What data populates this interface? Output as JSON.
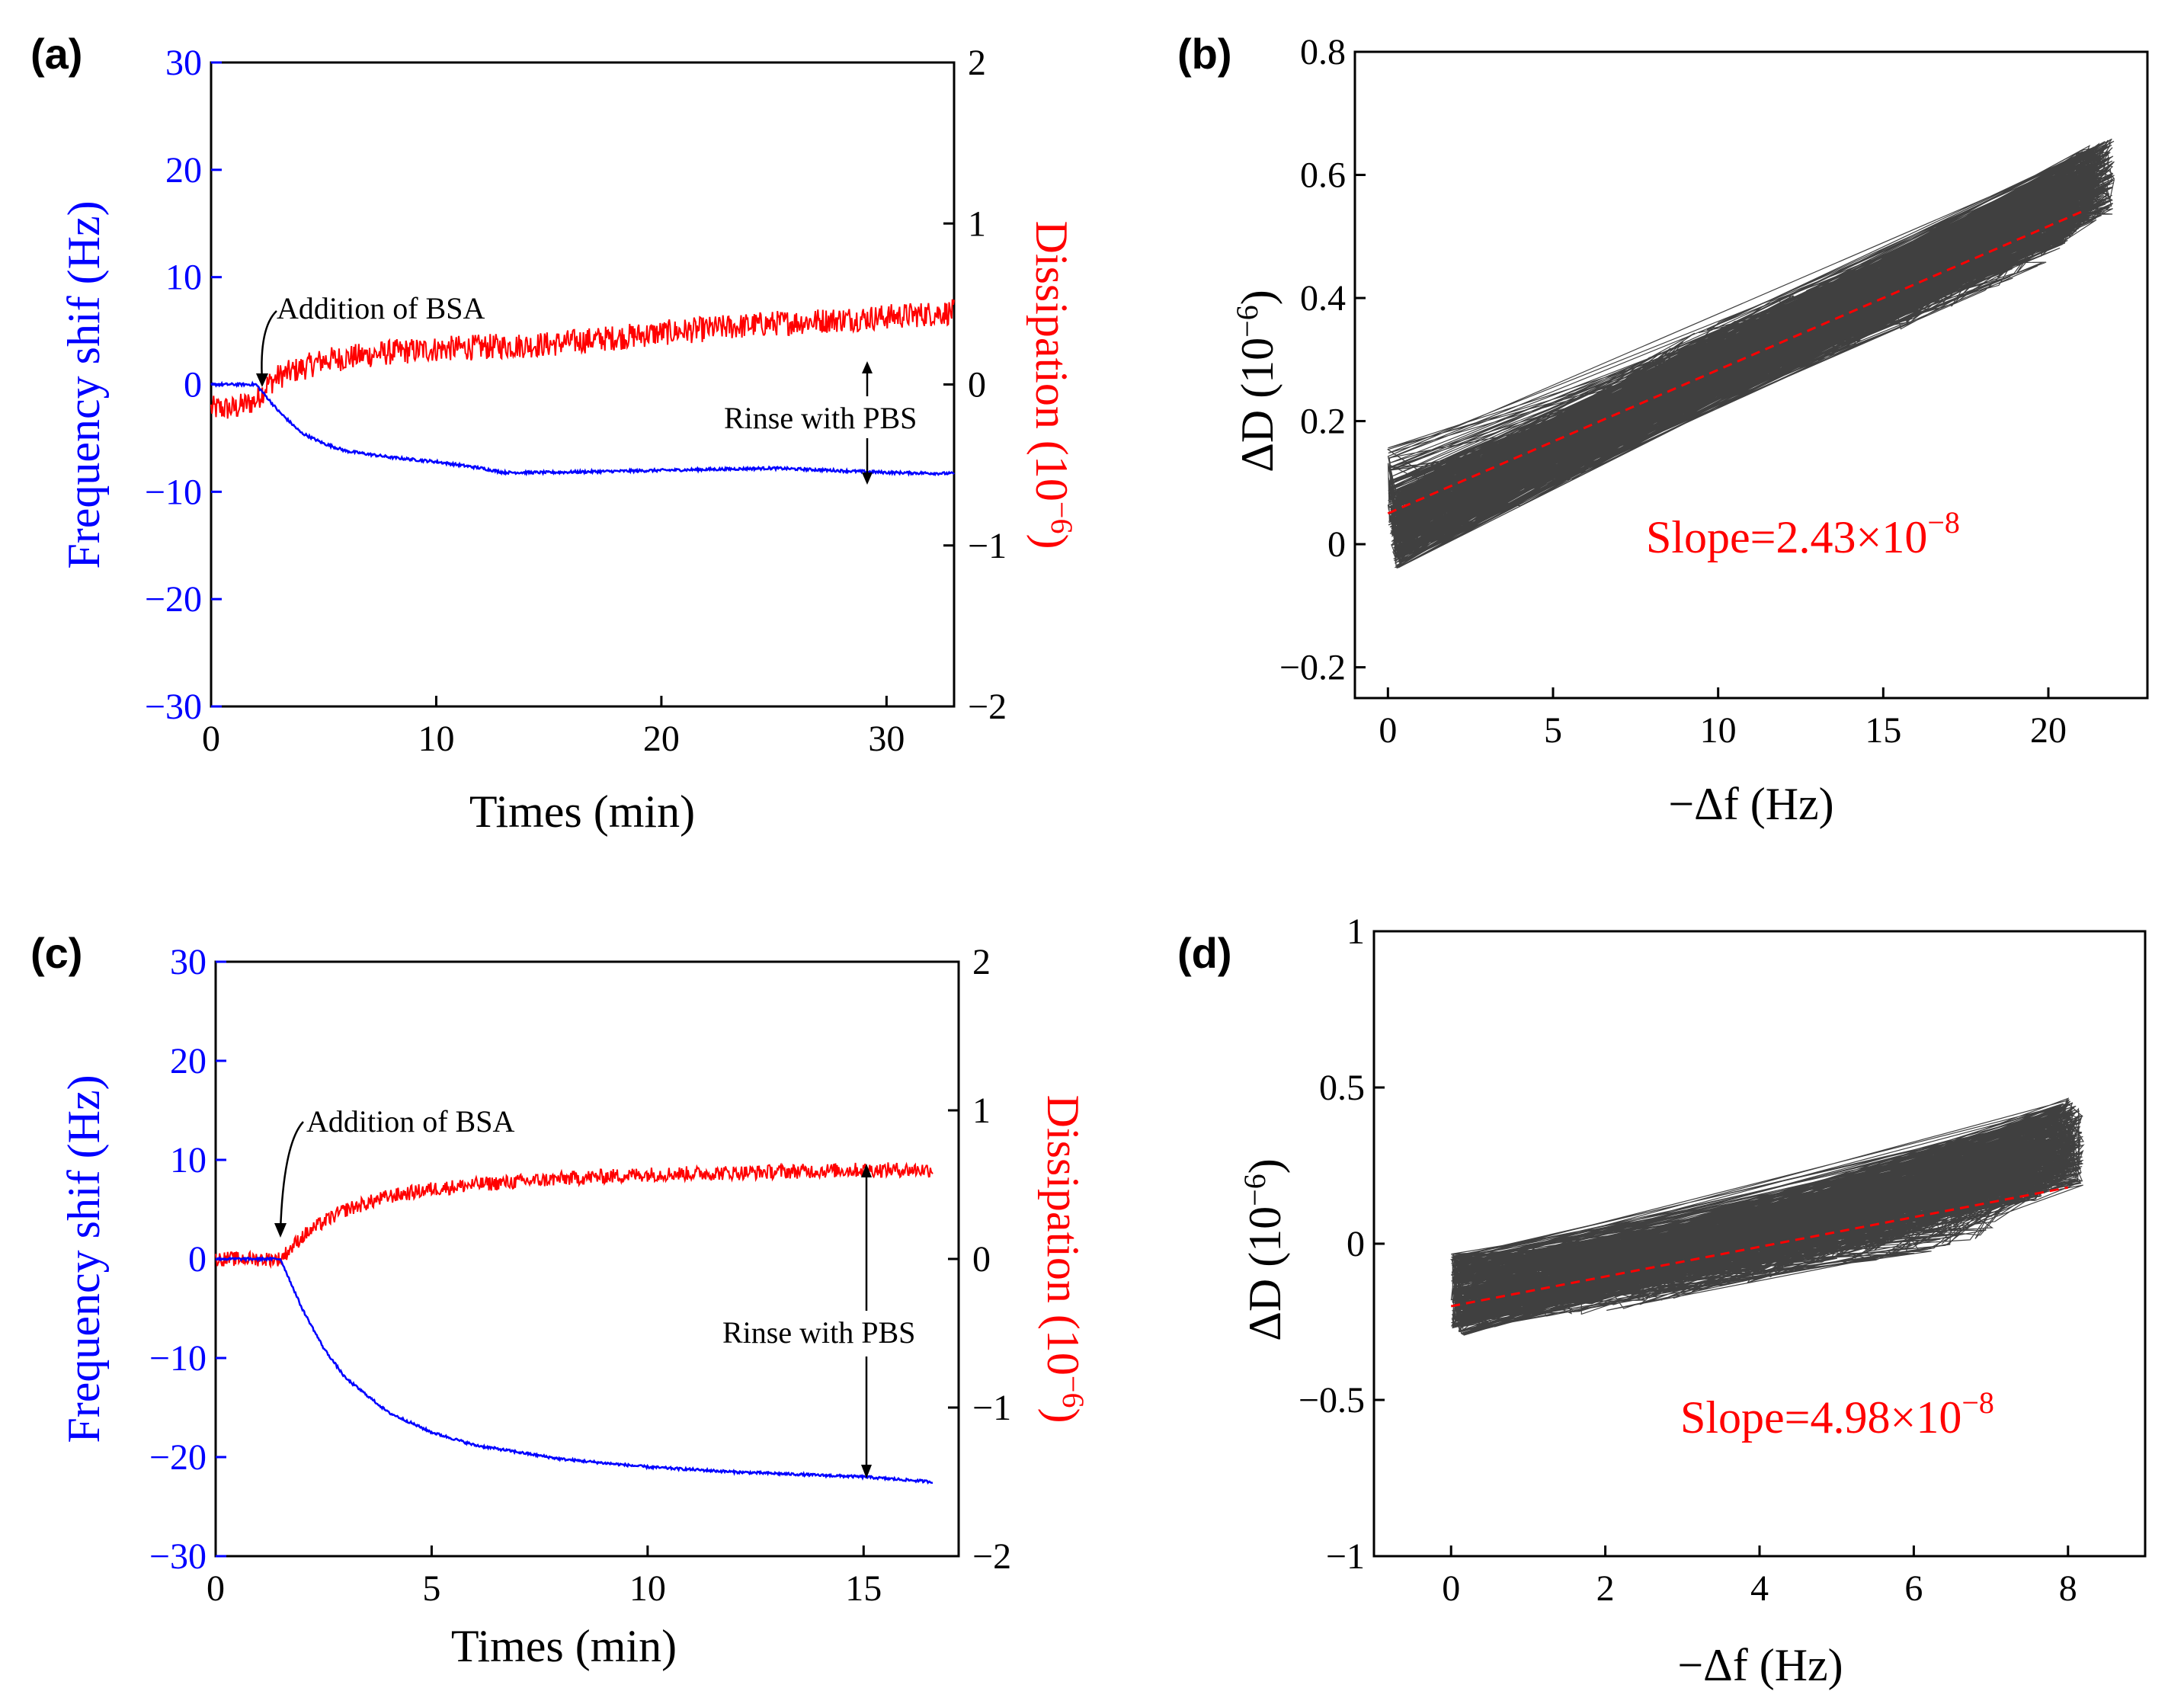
{
  "chart_data": [
    {
      "panel": "(a)",
      "type": "line",
      "title": "",
      "xlabel": "Times (min)",
      "ylabel_left": "Frequency shif  (Hz)",
      "ylabel_right": "Dissipation (10",
      "ylabel_right_exp": "−6",
      "ylabel_right_close": ")",
      "xlim": [
        0,
        33
      ],
      "ylim_left": [
        -30,
        30
      ],
      "ylim_right": [
        -2,
        2
      ],
      "x_ticks": [
        "0",
        "10",
        "20",
        "30"
      ],
      "y_left_ticks": [
        "−30",
        "−20",
        "−10",
        "0",
        "10",
        "20",
        "30"
      ],
      "y_right_ticks": [
        "−2",
        "−1",
        "0",
        "1",
        "2"
      ],
      "series": [
        {
          "name": "Frequency shift",
          "axis": "left",
          "color": "#0000ff",
          "x": [
            0,
            1,
            2,
            3,
            4,
            5,
            6,
            8,
            10,
            12,
            13,
            15,
            20,
            25,
            30,
            33
          ],
          "values": [
            0,
            0,
            0,
            -2.5,
            -4.5,
            -5.5,
            -6.2,
            -6.8,
            -7.2,
            -7.8,
            -8.2,
            -8.2,
            -8.0,
            -7.8,
            -8.2,
            -8.3
          ]
        },
        {
          "name": "Dissipation",
          "axis": "right",
          "color": "#ff0000",
          "noise": 0.08,
          "x": [
            0,
            1,
            2,
            2.5,
            3,
            5,
            8,
            10,
            15,
            20,
            25,
            30,
            33
          ],
          "values": [
            -0.15,
            -0.15,
            -0.1,
            0.0,
            0.05,
            0.15,
            0.2,
            0.22,
            0.25,
            0.32,
            0.38,
            0.42,
            0.45
          ]
        }
      ],
      "annotations": [
        "Addition of BSA",
        "Rinse with PBS"
      ]
    },
    {
      "panel": "(b)",
      "type": "scatter",
      "xlabel": "−Δf (Hz)",
      "ylabel": "ΔD (10",
      "ylabel_exp": "−6",
      "ylabel_close": ")",
      "xlim": [
        -1,
        23
      ],
      "ylim": [
        -0.25,
        0.8
      ],
      "x_ticks": [
        "0",
        "5",
        "10",
        "15",
        "20"
      ],
      "y_ticks": [
        "−0.2",
        "0",
        "0.2",
        "0.4",
        "0.6",
        "0.8"
      ],
      "trend": {
        "x": [
          0,
          21
        ],
        "y": [
          0.05,
          0.54
        ],
        "color": "#ff0000",
        "style": "dashed"
      },
      "slope_label": "Slope=2.43×10",
      "slope_exp": "−8",
      "series": [
        {
          "name": "ΔD vs −Δf",
          "color": "#000000",
          "x": [
            0,
            0,
            0.2,
            1,
            2,
            3,
            5,
            7,
            8,
            10,
            12,
            14,
            16,
            18,
            20,
            21,
            22,
            22
          ],
          "values": [
            -0.05,
            0.1,
            0.02,
            0.05,
            0.08,
            0.1,
            0.15,
            0.2,
            0.25,
            0.3,
            0.34,
            0.38,
            0.42,
            0.47,
            0.52,
            0.58,
            0.6,
            0.55
          ]
        }
      ]
    },
    {
      "panel": "(c)",
      "type": "line",
      "xlabel": "Times (min)",
      "ylabel_left": "Frequency shif  (Hz)",
      "ylabel_right": "Dissipation (10",
      "ylabel_right_exp": "−6",
      "ylabel_right_close": ")",
      "xlim": [
        0,
        17.2
      ],
      "ylim_left": [
        -30,
        30
      ],
      "ylim_right": [
        -2,
        2
      ],
      "x_ticks": [
        "0",
        "5",
        "10",
        "15"
      ],
      "y_left_ticks": [
        "−30",
        "−20",
        "−10",
        "0",
        "10",
        "20",
        "30"
      ],
      "y_right_ticks": [
        "−2",
        "−1",
        "0",
        "1",
        "2"
      ],
      "series": [
        {
          "name": "Frequency shift",
          "axis": "left",
          "color": "#0000ff",
          "x": [
            0,
            1,
            1.5,
            2,
            2.5,
            3,
            4,
            5,
            6,
            8,
            10,
            12,
            15,
            16.6
          ],
          "values": [
            0,
            0,
            0,
            -5,
            -9,
            -12,
            -15.5,
            -17.5,
            -18.8,
            -20.2,
            -21,
            -21.5,
            -22,
            -22.5
          ]
        },
        {
          "name": "Dissipation",
          "axis": "right",
          "color": "#ff0000",
          "noise": 0.05,
          "x": [
            0,
            1,
            1.5,
            2,
            2.5,
            3,
            4,
            5,
            6,
            8,
            10,
            12,
            15,
            16.6
          ],
          "values": [
            0.0,
            0.0,
            0.0,
            0.15,
            0.25,
            0.33,
            0.42,
            0.47,
            0.5,
            0.54,
            0.57,
            0.58,
            0.6,
            0.6
          ]
        }
      ],
      "annotations": [
        "Addition of BSA",
        "Rinse with PBS"
      ]
    },
    {
      "panel": "(d)",
      "type": "scatter",
      "xlabel": "−Δf (Hz)",
      "ylabel": "ΔD (10",
      "ylabel_exp": "−6",
      "ylabel_close": ")",
      "xlim": [
        -1,
        9
      ],
      "ylim": [
        -1,
        1
      ],
      "x_ticks": [
        "0",
        "2",
        "4",
        "6",
        "8"
      ],
      "y_ticks": [
        "−1",
        "−0.5",
        "0",
        "0.5",
        "1"
      ],
      "trend": {
        "x": [
          0,
          8
        ],
        "y": [
          -0.2,
          0.18
        ],
        "color": "#ff0000",
        "style": "dashed"
      },
      "slope_label": "Slope=4.98×10",
      "slope_exp": "−8",
      "series": [
        {
          "name": "ΔD vs −Δf",
          "color": "#000000",
          "x": [
            0,
            0.2,
            0.5,
            1,
            2,
            3,
            4,
            5,
            6,
            7,
            7.8,
            8,
            8.2
          ],
          "values": [
            -0.15,
            -0.18,
            -0.15,
            -0.12,
            -0.1,
            -0.05,
            0.0,
            0.05,
            0.08,
            0.15,
            0.3,
            0.35,
            0.3
          ]
        }
      ]
    }
  ]
}
